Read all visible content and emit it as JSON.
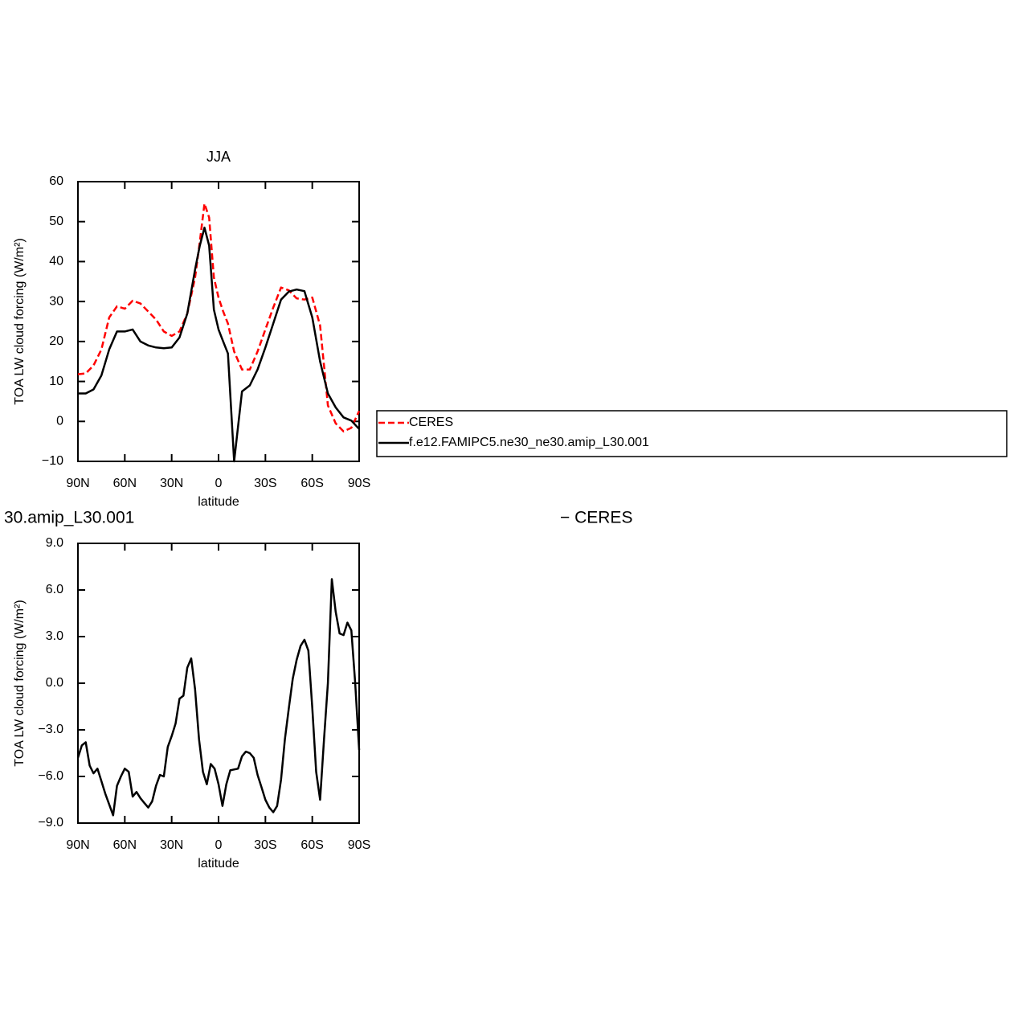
{
  "chart_data": [
    {
      "type": "line",
      "title": "JJA",
      "xlabel": "latitude",
      "ylabel": "TOA LW cloud forcing (W/m²)",
      "x": [
        90,
        85,
        80,
        75,
        70,
        65,
        60,
        55,
        50,
        45,
        40,
        35,
        30,
        25,
        20,
        15,
        12,
        9,
        6,
        3,
        0,
        -3,
        -6,
        -10,
        -15,
        -20,
        -25,
        -30,
        -35,
        -40,
        -45,
        -50,
        -55,
        -60,
        -65,
        -70,
        -75,
        -80,
        -85,
        -90
      ],
      "series": [
        {
          "name": "CERES",
          "color": "#ff0000",
          "style": "dashed",
          "values": [
            11.8,
            12,
            14,
            18,
            26,
            28.8,
            28.2,
            30.2,
            29.5,
            27.5,
            25.5,
            22.5,
            21.4,
            22.5,
            27,
            36,
            45,
            54.5,
            51,
            36,
            31,
            27.5,
            24.5,
            17.5,
            13,
            13,
            17.5,
            23,
            28.5,
            33.5,
            32.8,
            30.8,
            30.5,
            31,
            24,
            4,
            -0.5,
            -2.5,
            -1.6,
            2.6
          ]
        },
        {
          "name": "f.e12.FAMIPC5.ne30_ne30.amip_L30.001",
          "color": "#000000",
          "style": "solid",
          "values": [
            7,
            7,
            8,
            11.5,
            18,
            22.5,
            22.5,
            23,
            20,
            19,
            18.5,
            18.3,
            18.5,
            21,
            27,
            38,
            44,
            48.5,
            44,
            28,
            23,
            20,
            17,
            -10,
            7.5,
            9,
            13,
            18.5,
            24.5,
            30.5,
            32.5,
            33,
            32.6,
            26,
            15,
            7,
            3.5,
            1,
            0.2,
            -1.9
          ]
        }
      ],
      "xlim": [
        90,
        -90
      ],
      "xticks": [
        {
          "value": 90,
          "label": "90N"
        },
        {
          "value": 60,
          "label": "60N"
        },
        {
          "value": 30,
          "label": "30N"
        },
        0,
        {
          "value": -30,
          "label": "30S"
        },
        {
          "value": -60,
          "label": "60S"
        },
        {
          "value": -90,
          "label": "90S"
        }
      ],
      "ylim": [
        -10,
        60
      ],
      "yticks": [
        60,
        50,
        40,
        30,
        20,
        10,
        0,
        {
          "value": -10,
          "label": "−10"
        }
      ],
      "legend": "right"
    },
    {
      "type": "line",
      "title_parts": [
        "30.amip_L30.001",
        "− CERES"
      ],
      "xlabel": "latitude",
      "ylabel": "TOA LW cloud forcing (W/m²)",
      "x": [
        90,
        87.5,
        85,
        82.5,
        80,
        77.5,
        75,
        72.5,
        70,
        67.5,
        65,
        62.5,
        60,
        57.5,
        55,
        52.5,
        50,
        47.5,
        45,
        42.5,
        40,
        37.5,
        35,
        32.5,
        30,
        27.5,
        25,
        22.5,
        20,
        17.5,
        15,
        12.5,
        10,
        7.5,
        5,
        2.5,
        0,
        -2.5,
        -5,
        -7.5,
        -10,
        -12.5,
        -15,
        -17.5,
        -20,
        -22.5,
        -25,
        -27.5,
        -30,
        -32.5,
        -35,
        -37.5,
        -40,
        -42.5,
        -45,
        -47.5,
        -50,
        -52.5,
        -55,
        -57.5,
        -60,
        -62.5,
        -65,
        -67.5,
        -70,
        -72.5,
        -75,
        -77.5,
        -80,
        -82.5,
        -85,
        -87.5,
        -90
      ],
      "series": [
        {
          "color": "#000000",
          "values": [
            -4.8,
            -4.0,
            -3.8,
            -5.3,
            -5.8,
            -5.5,
            -6.3,
            -7.1,
            -7.8,
            -8.5,
            -6.6,
            -6.0,
            -5.5,
            -5.7,
            -7.3,
            -7.0,
            -7.4,
            -7.7,
            -8.0,
            -7.6,
            -6.6,
            -5.9,
            -6.0,
            -4.1,
            -3.4,
            -2.6,
            -1.0,
            -0.8,
            1.0,
            1.6,
            -0.4,
            -3.6,
            -5.7,
            -6.5,
            -5.2,
            -5.5,
            -6.5,
            -7.9,
            -6.5,
            -5.6,
            -5.55,
            -5.5,
            -4.7,
            -4.4,
            -4.5,
            -4.8,
            -5.9,
            -6.7,
            -7.5,
            -8.0,
            -8.3,
            -7.9,
            -6.2,
            -3.6,
            -1.6,
            0.3,
            1.5,
            2.4,
            2.8,
            2.1,
            -1.6,
            -5.7,
            -7.5,
            -3.6,
            0.0,
            6.7,
            4.6,
            3.2,
            3.1,
            3.9,
            3.4,
            0.0,
            -4.3
          ]
        }
      ],
      "xlim": [
        90,
        -90
      ],
      "xticks": [
        {
          "value": 90,
          "label": "90N"
        },
        {
          "value": 60,
          "label": "60N"
        },
        {
          "value": 30,
          "label": "30N"
        },
        0,
        {
          "value": -30,
          "label": "30S"
        },
        {
          "value": -60,
          "label": "60S"
        },
        {
          "value": -90,
          "label": "90S"
        }
      ],
      "ylim": [
        -9,
        9
      ],
      "yticks": [
        {
          "value": 9,
          "label": "9.0"
        },
        {
          "value": 6,
          "label": "6.0"
        },
        {
          "value": 3,
          "label": "3.0"
        },
        {
          "value": 0,
          "label": "0.0"
        },
        {
          "value": -3,
          "label": "−3.0"
        },
        {
          "value": -6,
          "label": "−6.0"
        },
        {
          "value": -9,
          "label": "−9.0"
        }
      ]
    }
  ]
}
